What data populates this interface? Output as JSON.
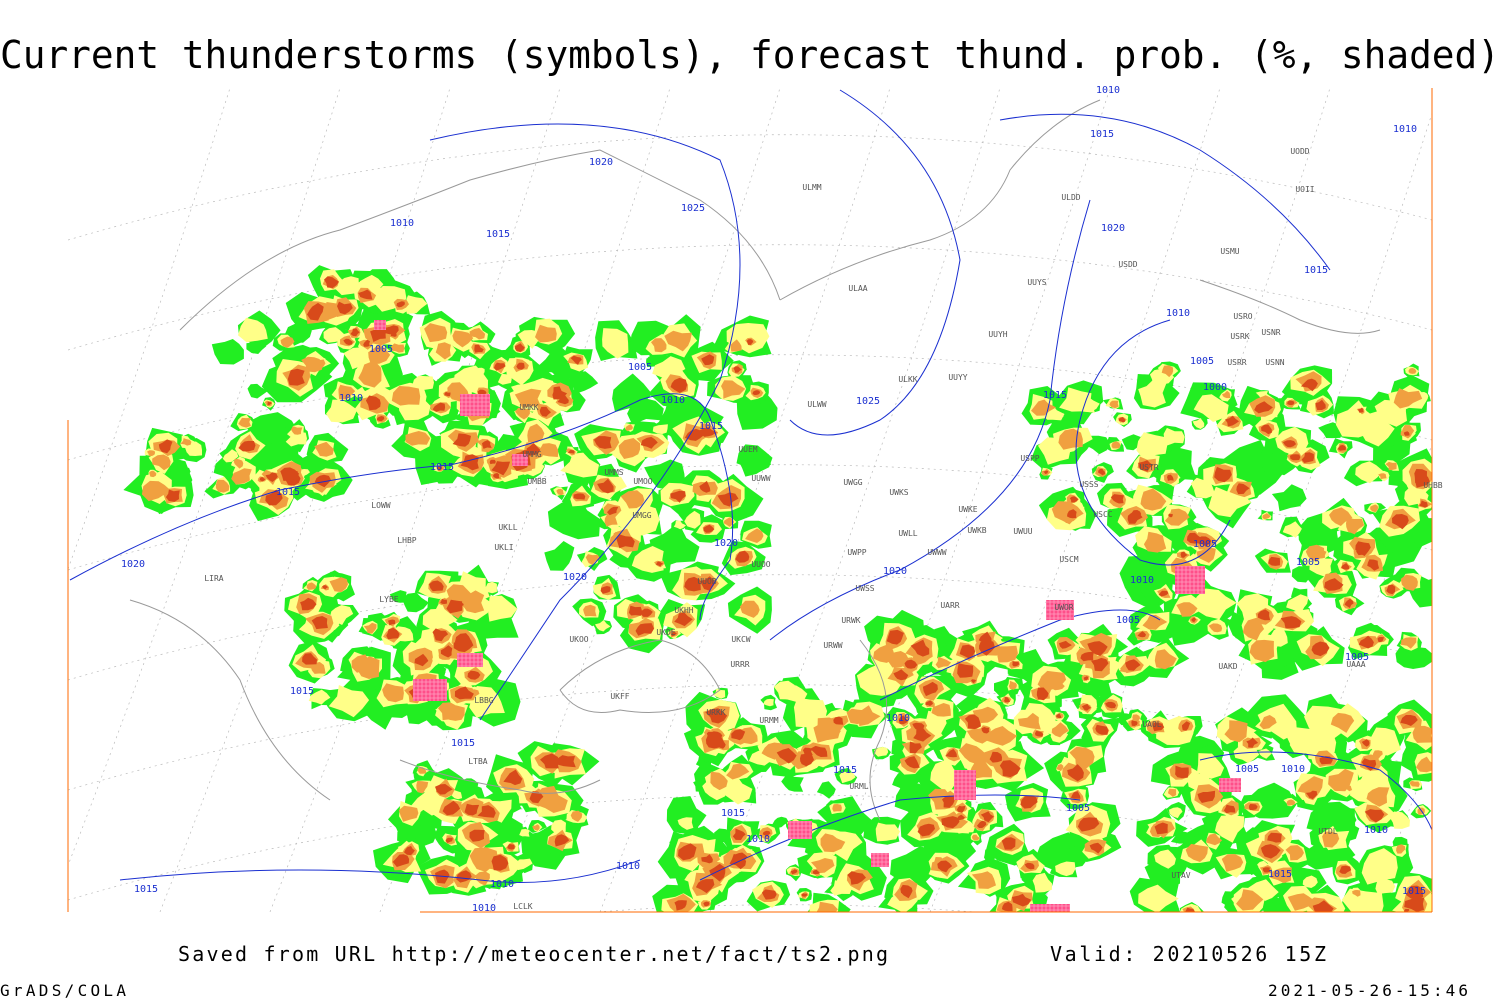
{
  "title": "Current thunderstorms (symbols), forecast thund. prob. (%, shaded)",
  "footer": {
    "source": "Saved from URL http://meteocenter.net/fact/ts2.png",
    "valid": "Valid: 20210526 15Z",
    "software": "GrADS/COLA",
    "timestamp": "2021-05-26-15:46"
  },
  "isobar_labels": [
    "1010",
    "1015",
    "1010",
    "1020",
    "1025",
    "1020",
    "1010",
    "1015",
    "1015",
    "1010",
    "1005",
    "1005",
    "1005",
    "1000",
    "1015",
    "1010",
    "1010",
    "1025",
    "1015",
    "1015",
    "1015",
    "1020",
    "1005",
    "1005",
    "1020",
    "1020",
    "1020",
    "1010",
    "1005",
    "1005",
    "1015",
    "1010",
    "1015",
    "1005",
    "1010",
    "1015",
    "1015",
    "1005",
    "1010",
    "1010",
    "1010",
    "1015",
    "1010",
    "1015",
    "1010",
    "1015"
  ],
  "station_codes": [
    "ULMM",
    "ULDD",
    "UODD",
    "UOII",
    "USDD",
    "USMU",
    "ULAA",
    "UUYS",
    "USRO",
    "USRK",
    "USNR",
    "USNN",
    "USRR",
    "UUYH",
    "ULKK",
    "UUYY",
    "ULWW",
    "UMKK",
    "UMMG",
    "UMMS",
    "UMOO",
    "UMBB",
    "LOWW",
    "UMGG",
    "UKLL",
    "UKLI",
    "LHBP",
    "UUEM",
    "UUWW",
    "UWGG",
    "UWKS",
    "UWKE",
    "UWKB",
    "UWLL",
    "UWUU",
    "UWWW",
    "UWPP",
    "USPP",
    "USSS",
    "USTR",
    "USCC",
    "USCM",
    "UUOO",
    "UUOB",
    "UWSS",
    "LIRA",
    "LYBE",
    "UKHH",
    "UWOR",
    "UARR",
    "URWK",
    "UKDE",
    "UKOO",
    "UKCW",
    "URWW",
    "URRR",
    "UKFF",
    "LBBG",
    "URKK",
    "URMM",
    "UAOL",
    "UAKD",
    "LTBA",
    "URML",
    "UTDL",
    "UTAV",
    "LCLK",
    "UHBB",
    "UAAA"
  ]
}
